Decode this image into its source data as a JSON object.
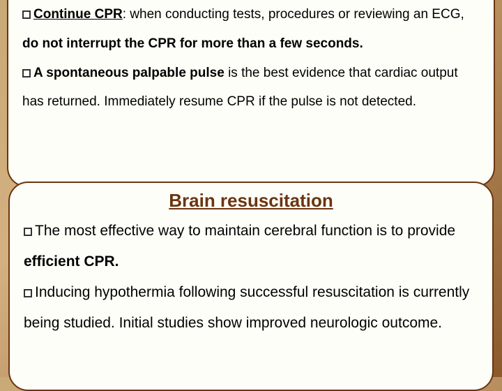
{
  "box1": {
    "bullet1_lead": "Continue CPR",
    "bullet1_rest1": ": when conducting tests, procedures or reviewing an ECG, ",
    "bullet1_bold": "do not interrupt the CPR for more than a few seconds.",
    "bullet2_lead": "A spontaneous palpable pulse",
    "bullet2_rest": " is the best evidence that cardiac output has returned. Immediately resume CPR if the pulse is not detected."
  },
  "box2": {
    "heading": "Brain resuscitation",
    "bullet1_part1": "The most effective way to maintain cerebral function is to provide ",
    "bullet1_bold": "efficient CPR.",
    "bullet2": "Inducing hypothermia following successful resuscitation is currently being studied. Initial studies show improved neurologic outcome."
  },
  "colors": {
    "box_bg": "#fefef8",
    "box_border": "#6b3410",
    "heading_color": "#6b3410",
    "text_color": "#000000"
  }
}
